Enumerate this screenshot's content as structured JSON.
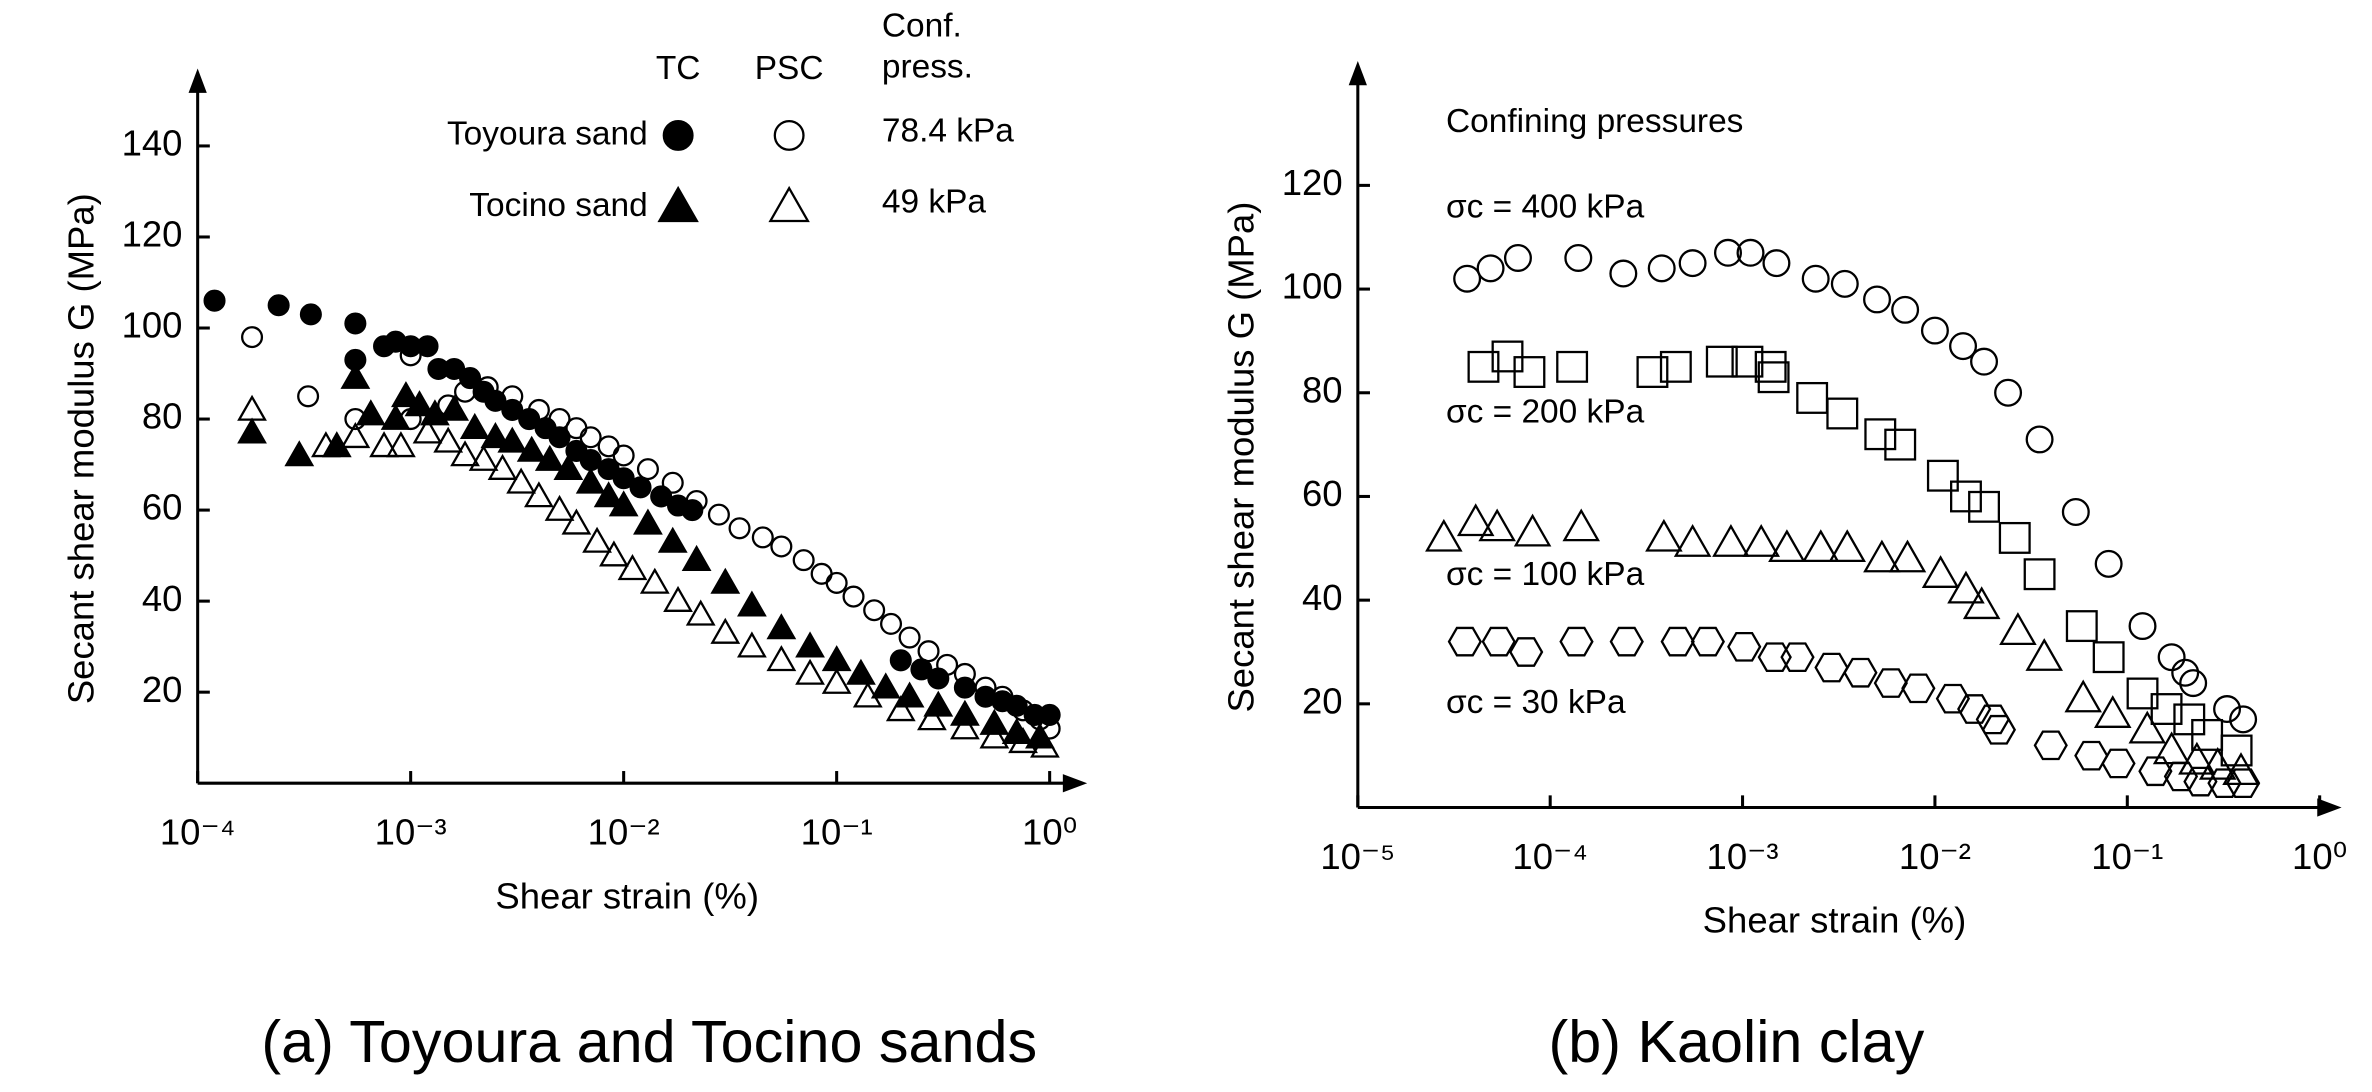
{
  "chart_data": [
    {
      "type": "scatter",
      "title": "(a) Toyoura and Tocino sands",
      "xlabel": "Shear strain (%)",
      "ylabel": "Secant shear modulus G (MPa)",
      "xscale": "log",
      "xlim": [
        0.0001,
        1.5
      ],
      "ylim": [
        0,
        157
      ],
      "color": "#000000",
      "xticks": [
        {
          "value": 0.0001,
          "label": "10⁻⁴"
        },
        {
          "value": 0.001,
          "label": "10⁻³"
        },
        {
          "value": 0.01,
          "label": "10⁻²"
        },
        {
          "value": 0.1,
          "label": "10⁻¹"
        },
        {
          "value": 1,
          "label": "10⁰"
        }
      ],
      "yticks": [
        20,
        40,
        60,
        80,
        100,
        120,
        140
      ],
      "legend": {
        "columns": [
          "TC",
          "PSC"
        ],
        "pressure_header": [
          "Conf.",
          "press."
        ]
      },
      "groups": [
        {
          "name": "Toyoura sand",
          "pressure": "78.4 kPa",
          "marker": "circle",
          "series": [
            {
              "filled": true,
              "x": [
                0.00012,
                0.00024,
                0.00034,
                0.00055,
                0.00055,
                0.00075,
                0.00085,
                0.001,
                0.0012,
                0.00135,
                0.0016,
                0.0019,
                0.0022,
                0.0025,
                0.003,
                0.0036,
                0.0043,
                0.005,
                0.006,
                0.007,
                0.0085,
                0.01,
                0.012,
                0.015,
                0.018,
                0.021,
                0.2,
                0.25,
                0.3,
                0.4,
                0.5,
                0.6,
                0.7,
                0.85,
                1.0
              ],
              "values": [
                106,
                105,
                103,
                101,
                93,
                96,
                97,
                96,
                96,
                91,
                91,
                89,
                86,
                84,
                82,
                80,
                78,
                76,
                73,
                71,
                69,
                67,
                65,
                63,
                61,
                60,
                27,
                25,
                23,
                21,
                19,
                18,
                17,
                15,
                15
              ]
            },
            {
              "filled": false,
              "x": [
                0.00018,
                0.00033,
                0.00055,
                0.001,
                0.001,
                0.0015,
                0.0018,
                0.0023,
                0.003,
                0.004,
                0.005,
                0.006,
                0.007,
                0.0085,
                0.01,
                0.013,
                0.017,
                0.022,
                0.028,
                0.035,
                0.045,
                0.055,
                0.07,
                0.085,
                0.1,
                0.12,
                0.15,
                0.18,
                0.22,
                0.27,
                0.33,
                0.4,
                0.5,
                0.6,
                0.75,
                0.9,
                1.0
              ],
              "values": [
                98,
                85,
                80,
                80,
                94,
                83,
                86,
                87,
                85,
                82,
                80,
                78,
                76,
                74,
                72,
                69,
                66,
                62,
                59,
                56,
                54,
                52,
                49,
                46,
                44,
                41,
                38,
                35,
                32,
                29,
                26,
                24,
                21,
                19,
                16,
                14,
                12
              ]
            }
          ]
        },
        {
          "name": "Tocino sand",
          "pressure": "49 kPa",
          "marker": "triangle",
          "series": [
            {
              "filled": true,
              "x": [
                0.00018,
                0.0003,
                0.00045,
                0.00055,
                0.00065,
                0.00085,
                0.00095,
                0.0011,
                0.0013,
                0.0016,
                0.002,
                0.0025,
                0.003,
                0.0037,
                0.0045,
                0.0055,
                0.007,
                0.0085,
                0.01,
                0.013,
                0.017,
                0.022,
                0.03,
                0.04,
                0.055,
                0.075,
                0.1,
                0.13,
                0.17,
                0.22,
                0.3,
                0.4,
                0.55,
                0.7,
                0.9
              ],
              "values": [
                77,
                72,
                74,
                89,
                81,
                80,
                85,
                83,
                81,
                82,
                78,
                76,
                75,
                73,
                71,
                69,
                66,
                63,
                61,
                57,
                53,
                49,
                44,
                39,
                34,
                30,
                27,
                24,
                21,
                19,
                17,
                15,
                13,
                11,
                10
              ]
            },
            {
              "filled": false,
              "x": [
                0.00018,
                0.0004,
                0.00055,
                0.00075,
                0.0009,
                0.0012,
                0.0015,
                0.0018,
                0.0022,
                0.0027,
                0.0033,
                0.004,
                0.005,
                0.006,
                0.0075,
                0.009,
                0.011,
                0.014,
                0.018,
                0.023,
                0.03,
                0.04,
                0.055,
                0.075,
                0.1,
                0.14,
                0.2,
                0.28,
                0.4,
                0.55,
                0.75,
                0.95
              ],
              "values": [
                82,
                74,
                76,
                74,
                74,
                77,
                75,
                72,
                71,
                69,
                66,
                63,
                60,
                57,
                53,
                50,
                47,
                44,
                40,
                37,
                33,
                30,
                27,
                24,
                22,
                19,
                16,
                14,
                12,
                10,
                9,
                8
              ]
            }
          ]
        }
      ]
    },
    {
      "type": "scatter",
      "title": "(b) Kaolin clay",
      "xlabel": "Shear strain (%)",
      "ylabel": "Secant shear modulus G (MPa)",
      "xscale": "log",
      "xlim": [
        1e-05,
        1.3
      ],
      "ylim": [
        0,
        144
      ],
      "color": "#000000",
      "xticks": [
        {
          "value": 1e-05,
          "label": "10⁻⁵"
        },
        {
          "value": 0.0001,
          "label": "10⁻⁴"
        },
        {
          "value": 0.001,
          "label": "10⁻³"
        },
        {
          "value": 0.01,
          "label": "10⁻²"
        },
        {
          "value": 0.1,
          "label": "10⁻¹"
        },
        {
          "value": 1,
          "label": "10⁰"
        }
      ],
      "yticks": [
        20,
        40,
        60,
        80,
        100,
        120
      ],
      "legend_title": "Confining pressures",
      "series": [
        {
          "name": "σc = 400 kPa",
          "marker": "circle",
          "filled": false,
          "x": [
            3.7e-05,
            4.9e-05,
            6.8e-05,
            0.00014,
            0.00024,
            0.00038,
            0.00055,
            0.00084,
            0.0011,
            0.0015,
            0.0024,
            0.0034,
            0.005,
            0.007,
            0.01,
            0.014,
            0.018,
            0.024,
            0.035,
            0.054,
            0.08,
            0.12,
            0.17,
            0.2,
            0.22,
            0.33,
            0.4
          ],
          "values": [
            102,
            104,
            106,
            106,
            103,
            104,
            105,
            107,
            107,
            105,
            102,
            101,
            98,
            96,
            92,
            89,
            86,
            80,
            71,
            57,
            47,
            35,
            29,
            26,
            24,
            19,
            17
          ]
        },
        {
          "name": "σc = 200 kPa",
          "marker": "square",
          "filled": false,
          "x": [
            4.5e-05,
            6e-05,
            7.8e-05,
            0.00013,
            0.00034,
            0.00045,
            0.00078,
            0.00106,
            0.0014,
            0.00145,
            0.0023,
            0.0033,
            0.0052,
            0.0066,
            0.011,
            0.0145,
            0.018,
            0.026,
            0.035,
            0.058,
            0.08,
            0.12,
            0.16,
            0.21,
            0.26,
            0.37
          ],
          "values": [
            85,
            87,
            84,
            85,
            84,
            85,
            86,
            86,
            85,
            83,
            79,
            76,
            72,
            70,
            64,
            60,
            58,
            52,
            45,
            35,
            29,
            22,
            19,
            17,
            14,
            11
          ]
        },
        {
          "name": "σc = 100 kPa",
          "marker": "triangle",
          "filled": false,
          "x": [
            2.8e-05,
            4.1e-05,
            5.3e-05,
            8.1e-05,
            0.000145,
            0.00039,
            0.00055,
            0.00087,
            0.00125,
            0.0017,
            0.00255,
            0.0035,
            0.0053,
            0.0072,
            0.0107,
            0.0145,
            0.0175,
            0.027,
            0.037,
            0.059,
            0.084,
            0.127,
            0.17,
            0.23,
            0.295,
            0.39
          ],
          "values": [
            52,
            55,
            54,
            53,
            54,
            52,
            51,
            51,
            51,
            50,
            50,
            50,
            48,
            48,
            45,
            42,
            39,
            34,
            29,
            21,
            18,
            15,
            11,
            9,
            8,
            7
          ]
        },
        {
          "name": "σc = 30 kPa",
          "marker": "hexagon",
          "filled": false,
          "x": [
            3.6e-05,
            5.4e-05,
            7.5e-05,
            0.000137,
            0.00025,
            0.00046,
            0.00066,
            0.00102,
            0.00147,
            0.00193,
            0.0029,
            0.0041,
            0.0059,
            0.0082,
            0.0124,
            0.016,
            0.02,
            0.0215,
            0.04,
            0.065,
            0.09,
            0.14,
            0.19,
            0.24,
            0.32,
            0.4
          ],
          "values": [
            32,
            32,
            30,
            32,
            32,
            32,
            32,
            31,
            29,
            29,
            27,
            26,
            24,
            23,
            21,
            19,
            17,
            15,
            12,
            10,
            8.5,
            7,
            6,
            5,
            4.7,
            4.7
          ]
        }
      ]
    }
  ]
}
